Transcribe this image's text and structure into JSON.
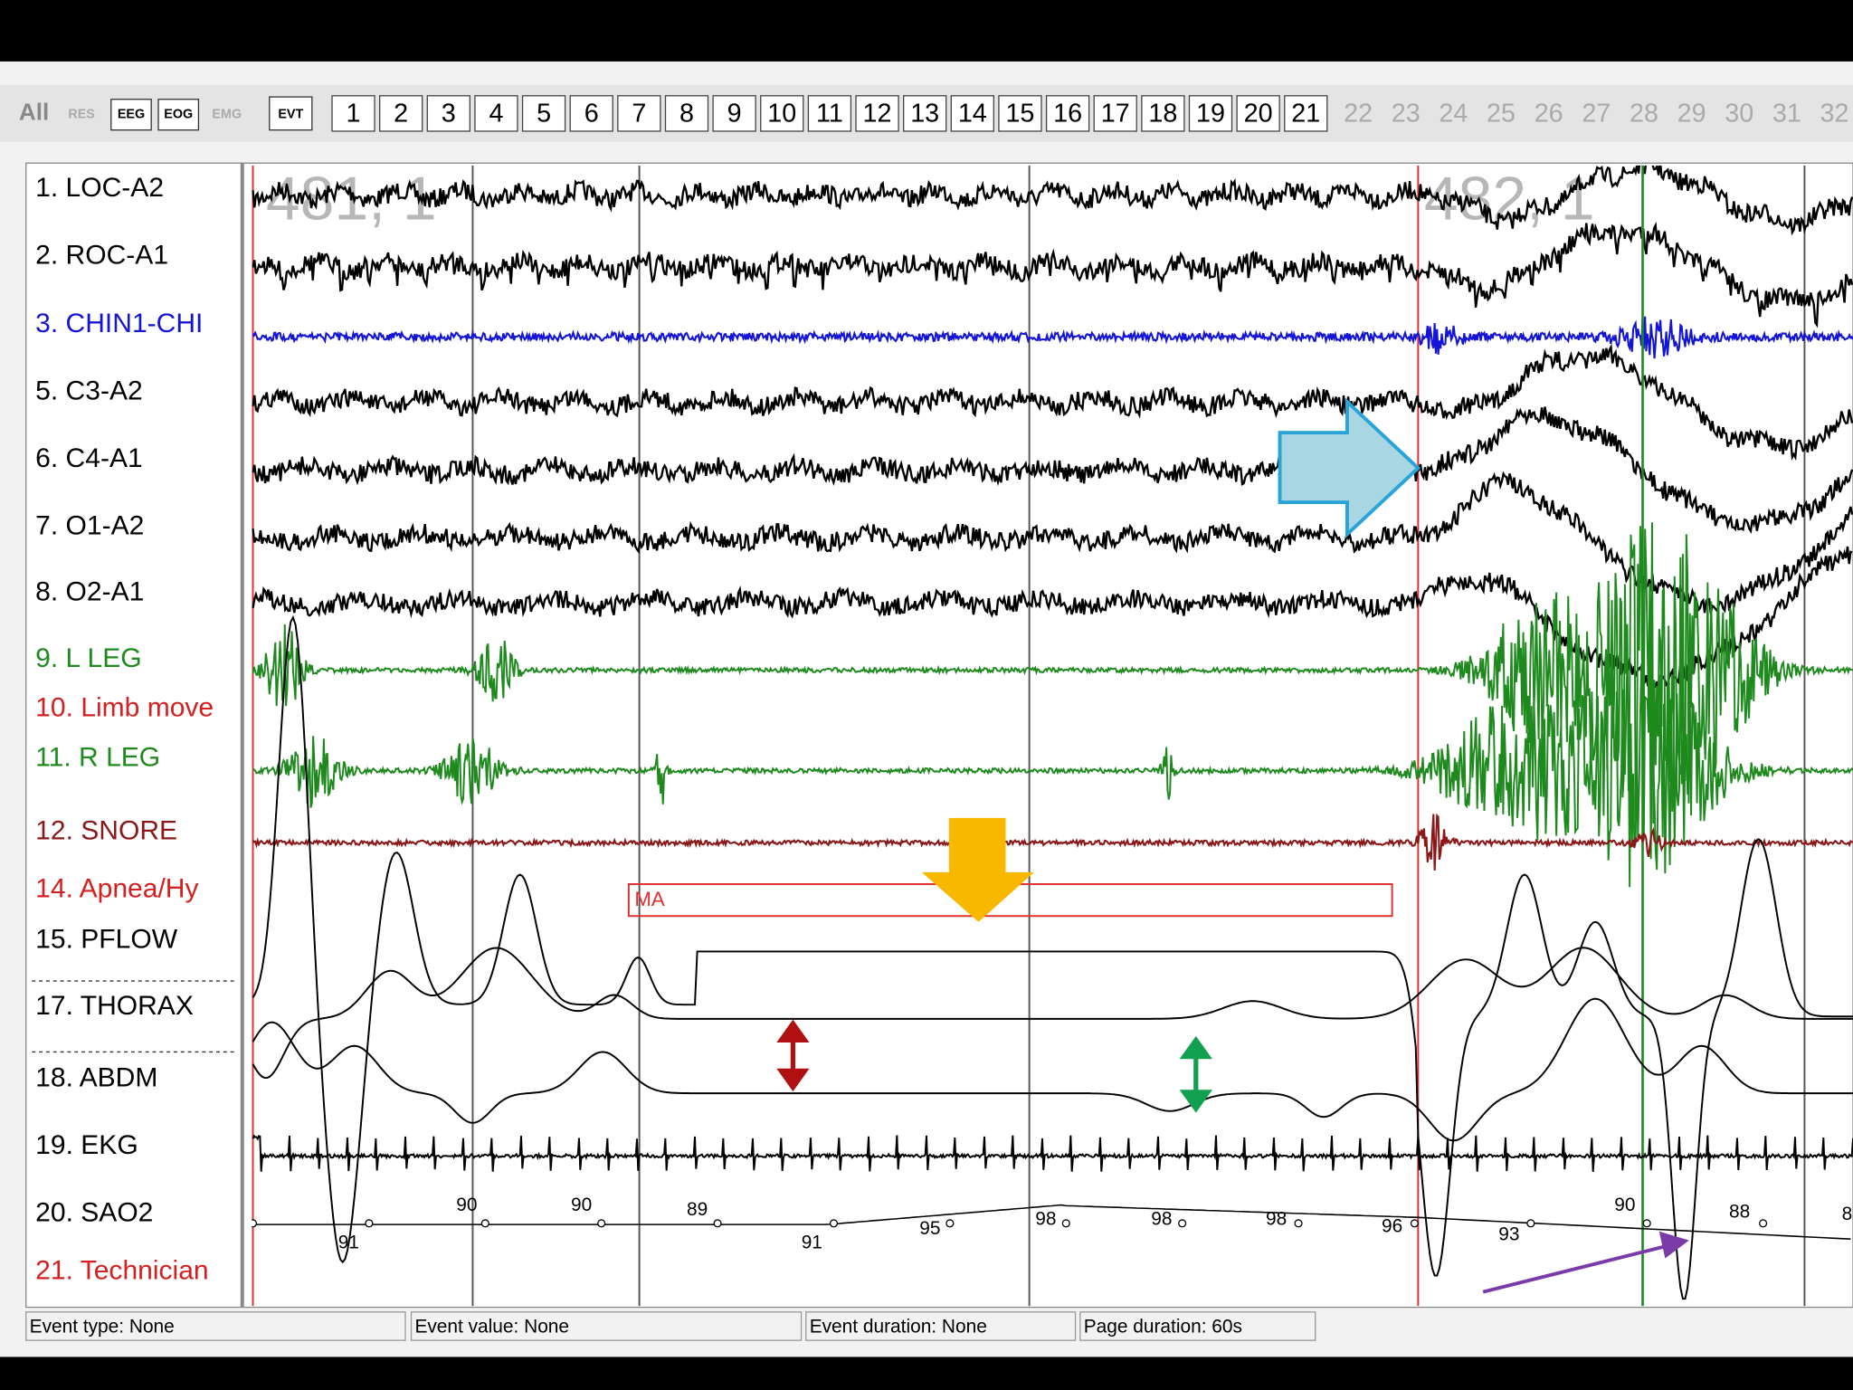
{
  "toolbar": {
    "all": "All",
    "montages": [
      {
        "label": "RES",
        "enabled": false
      },
      {
        "label": "EEG",
        "enabled": true
      },
      {
        "label": "EOG",
        "enabled": true
      },
      {
        "label": "EMG",
        "enabled": false
      }
    ],
    "event": "EVT",
    "pages": [
      "1",
      "2",
      "3",
      "4",
      "5",
      "6",
      "7",
      "8",
      "9",
      "10",
      "11",
      "12",
      "13",
      "14",
      "15",
      "16",
      "17",
      "18",
      "19",
      "20",
      "21"
    ],
    "disabled_pages": [
      "22",
      "23",
      "24",
      "25",
      "26",
      "27",
      "28",
      "29",
      "30",
      "31",
      "32"
    ]
  },
  "channels": [
    {
      "label": "1. LOC-A2",
      "color": "#000000"
    },
    {
      "label": "2. ROC-A1",
      "color": "#000000"
    },
    {
      "label": "3. CHIN1-CHI",
      "color": "#1414d8"
    },
    {
      "label": "5. C3-A2",
      "color": "#000000"
    },
    {
      "label": "6. C4-A1",
      "color": "#000000"
    },
    {
      "label": "7. O1-A2",
      "color": "#000000"
    },
    {
      "label": "8. O2-A1",
      "color": "#000000"
    },
    {
      "label": "9. L LEG",
      "color": "#1e8a1e"
    },
    {
      "label": "10. Limb move",
      "color": "#d42020"
    },
    {
      "label": "11. R LEG",
      "color": "#1e8a1e"
    },
    {
      "label": "12. SNORE",
      "color": "#8b1818"
    },
    {
      "label": "14. Apnea/Hy",
      "color": "#d42020"
    },
    {
      "label": "15. PFLOW",
      "color": "#000000"
    },
    {
      "label": "17. THORAX",
      "color": "#000000"
    },
    {
      "label": "18. ABDM",
      "color": "#000000"
    },
    {
      "label": "19. EKG",
      "color": "#000000"
    },
    {
      "label": "20. SAO2",
      "color": "#000000"
    },
    {
      "label": "21. Technician",
      "color": "#d42020"
    }
  ],
  "epochs": [
    "481, 1",
    "482, 1"
  ],
  "event_annotation": "MA",
  "sao2_values": [
    "91",
    "90",
    "90",
    "89",
    "91",
    "95",
    "98",
    "98",
    "98",
    "96",
    "93",
    "90",
    "88",
    "8"
  ],
  "status": [
    "Event type: None",
    "Event value: None",
    "Event duration: None",
    "Page duration: 60s"
  ]
}
